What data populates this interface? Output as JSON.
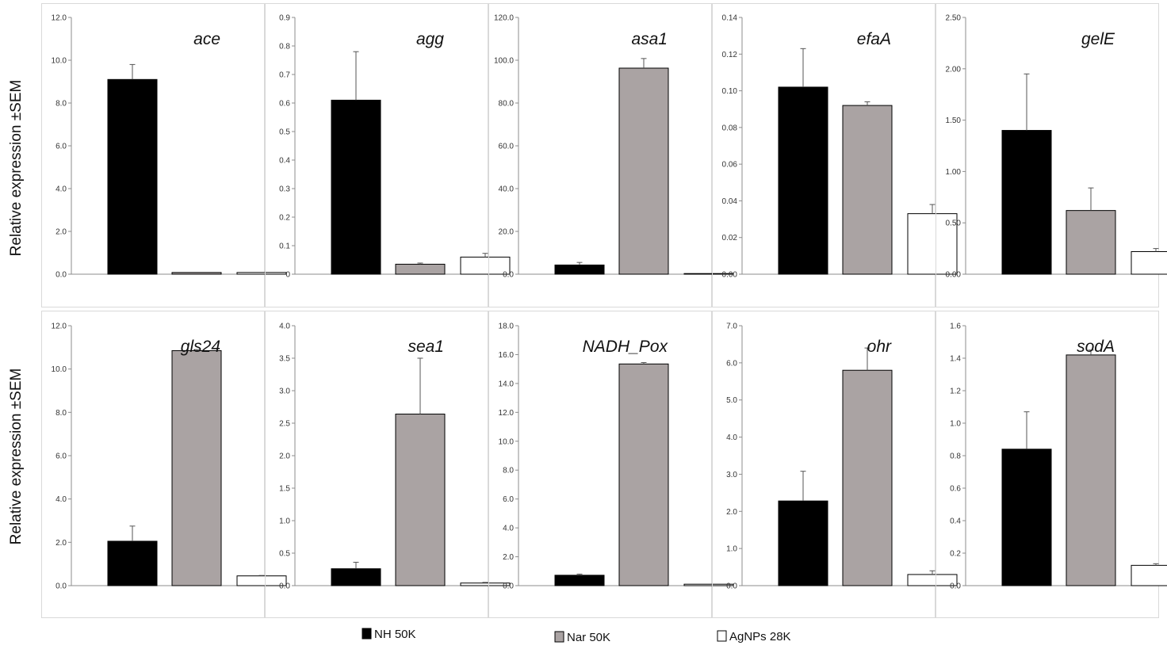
{
  "figure": {
    "ylabel": "Relative expression ±SEM",
    "legend": [
      {
        "label": "NH 50K",
        "color": "#000000"
      },
      {
        "label": "Nar 50K",
        "color": "#aaa3a3"
      },
      {
        "label": "AgNPs 28K",
        "color": "#ffffff"
      }
    ]
  },
  "chart_data": [
    {
      "type": "bar",
      "title": "ace",
      "ylim": [
        0,
        12
      ],
      "yticks": [
        "0.0",
        "2.0",
        "4.0",
        "6.0",
        "8.0",
        "10.0",
        "12.0"
      ],
      "series": [
        {
          "name": "NH 50K",
          "values": [
            9.1
          ],
          "error": [
            0.7
          ]
        },
        {
          "name": "Nar 50K",
          "values": [
            0.08
          ],
          "error": [
            0
          ]
        },
        {
          "name": "AgNPs 28K",
          "values": [
            0.08
          ],
          "error": [
            0
          ]
        }
      ]
    },
    {
      "type": "bar",
      "title": "agg",
      "ylim": [
        0,
        0.9
      ],
      "yticks": [
        "0",
        "0.1",
        "0.2",
        "0.3",
        "0.4",
        "0.5",
        "0.6",
        "0.7",
        "0.8",
        "0.9"
      ],
      "series": [
        {
          "name": "NH 50K",
          "values": [
            0.61
          ],
          "error": [
            0.17
          ]
        },
        {
          "name": "Nar 50K",
          "values": [
            0.035
          ],
          "error": [
            0.004
          ]
        },
        {
          "name": "AgNPs 28K",
          "values": [
            0.06
          ],
          "error": [
            0.013
          ]
        }
      ]
    },
    {
      "type": "bar",
      "title": "asa1",
      "ylim": [
        0,
        120
      ],
      "yticks": [
        "0.0",
        "20.0",
        "40.0",
        "60.0",
        "80.0",
        "100.0",
        "120.0"
      ],
      "series": [
        {
          "name": "NH 50K",
          "values": [
            4.3
          ],
          "error": [
            1.2
          ]
        },
        {
          "name": "Nar 50K",
          "values": [
            96.3
          ],
          "error": [
            4.5
          ]
        },
        {
          "name": "AgNPs 28K",
          "values": [
            0.3
          ],
          "error": [
            0
          ]
        }
      ]
    },
    {
      "type": "bar",
      "title": "efaA",
      "ylim": [
        0,
        0.14
      ],
      "yticks": [
        "0.00",
        "0.02",
        "0.04",
        "0.06",
        "0.08",
        "0.10",
        "0.12",
        "0.14"
      ],
      "series": [
        {
          "name": "NH 50K",
          "values": [
            0.102
          ],
          "error": [
            0.021
          ]
        },
        {
          "name": "Nar 50K",
          "values": [
            0.092
          ],
          "error": [
            0.002
          ]
        },
        {
          "name": "AgNPs 28K",
          "values": [
            0.033
          ],
          "error": [
            0.005
          ]
        }
      ]
    },
    {
      "type": "bar",
      "title": "gelE",
      "ylim": [
        0,
        2.5
      ],
      "yticks": [
        "0.00",
        "0.50",
        "1.00",
        "1.50",
        "2.00",
        "2.50"
      ],
      "series": [
        {
          "name": "NH 50K",
          "values": [
            1.4
          ],
          "error": [
            0.55
          ]
        },
        {
          "name": "Nar 50K",
          "values": [
            0.62
          ],
          "error": [
            0.22
          ]
        },
        {
          "name": "AgNPs 28K",
          "values": [
            0.22
          ],
          "error": [
            0.03
          ]
        }
      ]
    },
    {
      "type": "bar",
      "title": "gls24",
      "ylim": [
        0,
        12
      ],
      "yticks": [
        "0.0",
        "2.0",
        "4.0",
        "6.0",
        "8.0",
        "10.0",
        "12.0"
      ],
      "series": [
        {
          "name": "NH 50K",
          "values": [
            2.05
          ],
          "error": [
            0.7
          ]
        },
        {
          "name": "Nar 50K",
          "values": [
            10.85
          ],
          "error": [
            0.05
          ]
        },
        {
          "name": "AgNPs 28K",
          "values": [
            0.45
          ],
          "error": [
            0.02
          ]
        }
      ]
    },
    {
      "type": "bar",
      "title": "sea1",
      "ylim": [
        0,
        4
      ],
      "yticks": [
        "0.0",
        "0.5",
        "1.0",
        "1.5",
        "2.0",
        "2.5",
        "3.0",
        "3.5",
        "4.0"
      ],
      "series": [
        {
          "name": "NH 50K",
          "values": [
            0.26
          ],
          "error": [
            0.1
          ]
        },
        {
          "name": "Nar 50K",
          "values": [
            2.64
          ],
          "error": [
            0.86
          ]
        },
        {
          "name": "AgNPs 28K",
          "values": [
            0.04
          ],
          "error": [
            0.01
          ]
        }
      ]
    },
    {
      "type": "bar",
      "title": "NADH_Pox",
      "ylim": [
        0,
        18
      ],
      "yticks": [
        "0.0",
        "2.0",
        "4.0",
        "6.0",
        "8.0",
        "10.0",
        "12.0",
        "14.0",
        "16.0",
        "18.0"
      ],
      "series": [
        {
          "name": "NH 50K",
          "values": [
            0.72
          ],
          "error": [
            0.08
          ]
        },
        {
          "name": "Nar 50K",
          "values": [
            15.35
          ],
          "error": [
            0.1
          ]
        },
        {
          "name": "AgNPs 28K",
          "values": [
            0.1
          ],
          "error": [
            0
          ]
        }
      ]
    },
    {
      "type": "bar",
      "title": "ohr",
      "ylim": [
        0,
        7
      ],
      "yticks": [
        "0.0",
        "1.0",
        "2.0",
        "3.0",
        "4.0",
        "5.0",
        "6.0",
        "7.0"
      ],
      "series": [
        {
          "name": "NH 50K",
          "values": [
            2.28
          ],
          "error": [
            0.8
          ]
        },
        {
          "name": "Nar 50K",
          "values": [
            5.8
          ],
          "error": [
            0.6
          ]
        },
        {
          "name": "AgNPs 28K",
          "values": [
            0.3
          ],
          "error": [
            0.1
          ]
        }
      ]
    },
    {
      "type": "bar",
      "title": "sodA",
      "ylim": [
        0,
        1.6
      ],
      "yticks": [
        "0.0",
        "0.2",
        "0.4",
        "0.6",
        "0.8",
        "1.0",
        "1.2",
        "1.4",
        "1.6"
      ],
      "series": [
        {
          "name": "NH 50K",
          "values": [
            0.84
          ],
          "error": [
            0.23
          ]
        },
        {
          "name": "Nar 50K",
          "values": [
            1.42
          ],
          "error": [
            0.03
          ]
        },
        {
          "name": "AgNPs 28K",
          "values": [
            0.125
          ],
          "error": [
            0.01
          ]
        }
      ]
    }
  ]
}
